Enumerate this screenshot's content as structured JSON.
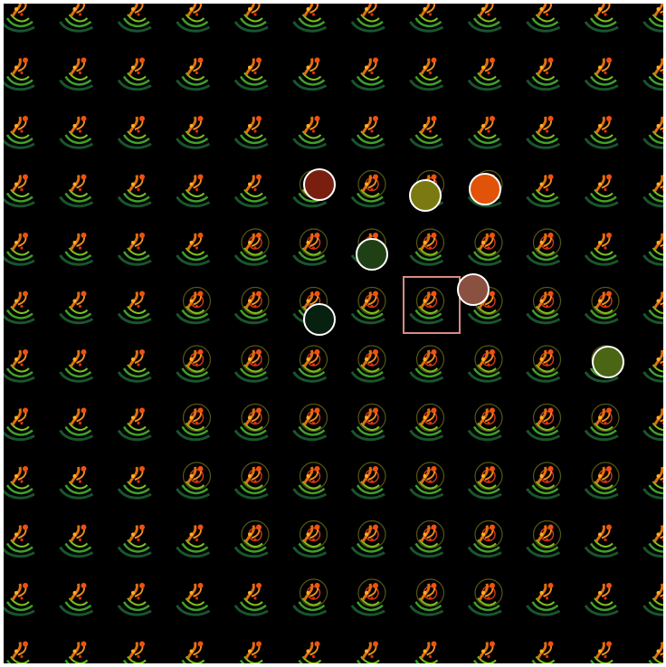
{
  "board": {
    "columns": 12,
    "rows": 12,
    "background": "#000000",
    "tile_icon": "swirl-sprite-icon"
  },
  "tokens": [
    {
      "id": "dark-red",
      "color": "#7a1f10",
      "cell": [
        5,
        3
      ]
    },
    {
      "id": "olive",
      "color": "#7a7a10",
      "cell": [
        7,
        3
      ]
    },
    {
      "id": "orange",
      "color": "#e05308",
      "cell": [
        8,
        3
      ]
    },
    {
      "id": "dark-green",
      "color": "#1f4015",
      "cell": [
        6,
        4
      ]
    },
    {
      "id": "brown",
      "color": "#8a5040",
      "cell": [
        8,
        5
      ]
    },
    {
      "id": "very-dark-green",
      "color": "#082010",
      "cell": [
        5,
        5
      ]
    },
    {
      "id": "moss-green",
      "color": "#4a6514",
      "cell": [
        10,
        6
      ]
    }
  ],
  "selection": {
    "cell": [
      7,
      5
    ],
    "color": "#d98a80"
  }
}
